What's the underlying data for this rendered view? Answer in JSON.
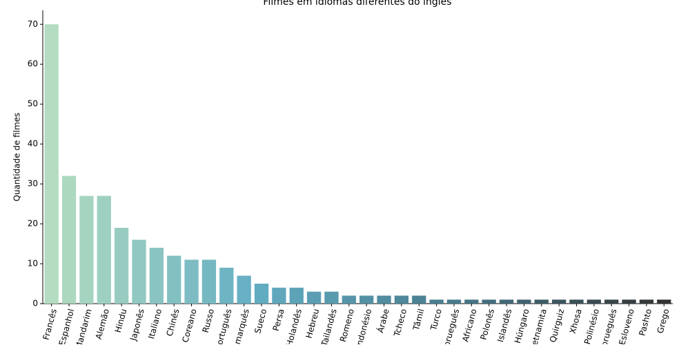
{
  "chart_data": {
    "type": "bar",
    "title": "Filmes em idiomas diferentes do inglês",
    "y_label": "Quantidade de filmes",
    "categories": [
      "Francês",
      "Espanhol",
      "Mandarim",
      "Alemão",
      "Hindu",
      "Japonês",
      "Italiano",
      "Chinês",
      "Coreano",
      "Russo",
      "Português",
      "Dinamarquês",
      "Sueco",
      "Persa",
      "Holandês",
      "Hebreu",
      "Tailandês",
      "Romeno",
      "Indonésio",
      "Árabe",
      "Tcheco",
      "Tâmil",
      "Turco",
      "Norueguês",
      "Africano",
      "Polonês",
      "Islandês",
      "Húngaro",
      "Vietnamita",
      "Quirguiz",
      "Xhosa",
      "Polinésio",
      "Norueguês",
      "Esloveno",
      "Pashto",
      "Grego"
    ],
    "values": [
      70,
      32,
      27,
      27,
      19,
      16,
      14,
      12,
      11,
      11,
      9,
      7,
      5,
      4,
      4,
      3,
      3,
      2,
      2,
      2,
      2,
      2,
      1,
      1,
      1,
      1,
      1,
      1,
      1,
      1,
      1,
      1,
      1,
      1,
      1,
      1
    ],
    "palette": [
      "#b3dcc0",
      "#63adc3",
      "#46798a",
      "#333333"
    ],
    "ylim": [
      0,
      73.5
    ],
    "yticks": [
      0,
      10,
      20,
      30,
      40,
      50,
      60,
      70
    ],
    "grid": false
  }
}
